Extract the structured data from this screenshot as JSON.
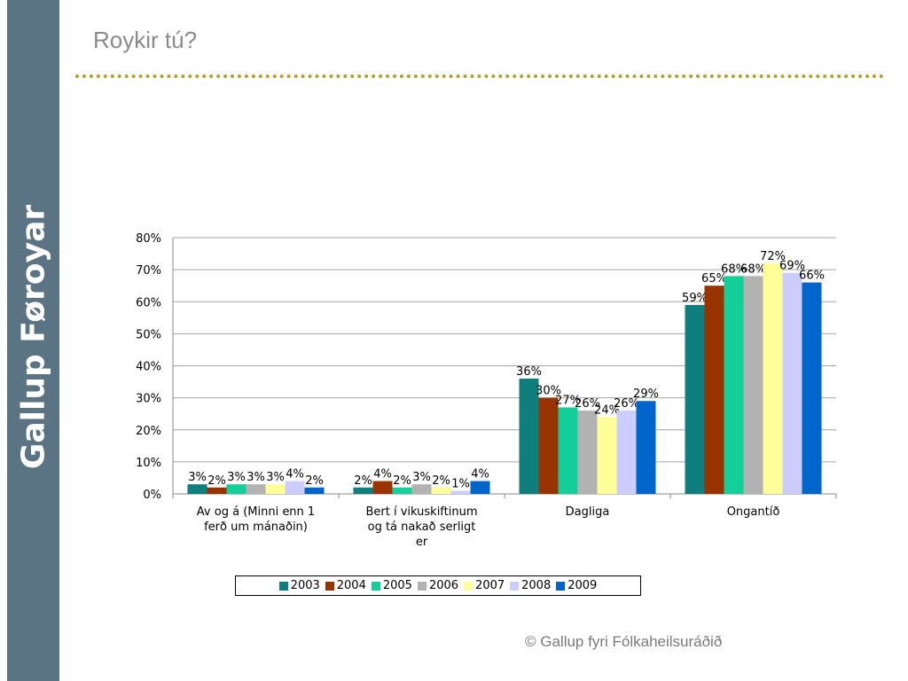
{
  "slide": {
    "title": "Roykir tú?",
    "side_label": "Gallup Føroyar",
    "footer": "© Gallup fyri Fólkaheilsuráðið"
  },
  "chart_data": {
    "type": "bar",
    "title": "",
    "xlabel": "",
    "ylabel": "",
    "ylim": [
      0,
      80
    ],
    "yticks": [
      "0%",
      "10%",
      "20%",
      "30%",
      "40%",
      "50%",
      "60%",
      "70%",
      "80%"
    ],
    "grid": true,
    "legend_position": "bottom",
    "categories": [
      [
        "Av og á (Minni enn 1",
        "ferð um mánaðin)"
      ],
      [
        "Bert í vikuskiftinum",
        "og tá nakað serligt",
        "er"
      ],
      [
        "Dagliga"
      ],
      [
        "Ongantíð"
      ]
    ],
    "series": [
      {
        "name": "2003",
        "color": "#0e7f7c",
        "values": [
          3,
          2,
          36,
          59
        ]
      },
      {
        "name": "2004",
        "color": "#993300",
        "values": [
          2,
          4,
          30,
          65
        ]
      },
      {
        "name": "2005",
        "color": "#13d09a",
        "values": [
          3,
          2,
          27,
          68
        ]
      },
      {
        "name": "2006",
        "color": "#b2b2b2",
        "values": [
          3,
          3,
          26,
          68
        ]
      },
      {
        "name": "2007",
        "color": "#ffff99",
        "values": [
          3,
          2,
          24,
          72
        ]
      },
      {
        "name": "2008",
        "color": "#ccccff",
        "values": [
          4,
          1,
          26,
          69
        ]
      },
      {
        "name": "2009",
        "color": "#0066cc",
        "values": [
          2,
          4,
          29,
          66
        ]
      }
    ]
  }
}
